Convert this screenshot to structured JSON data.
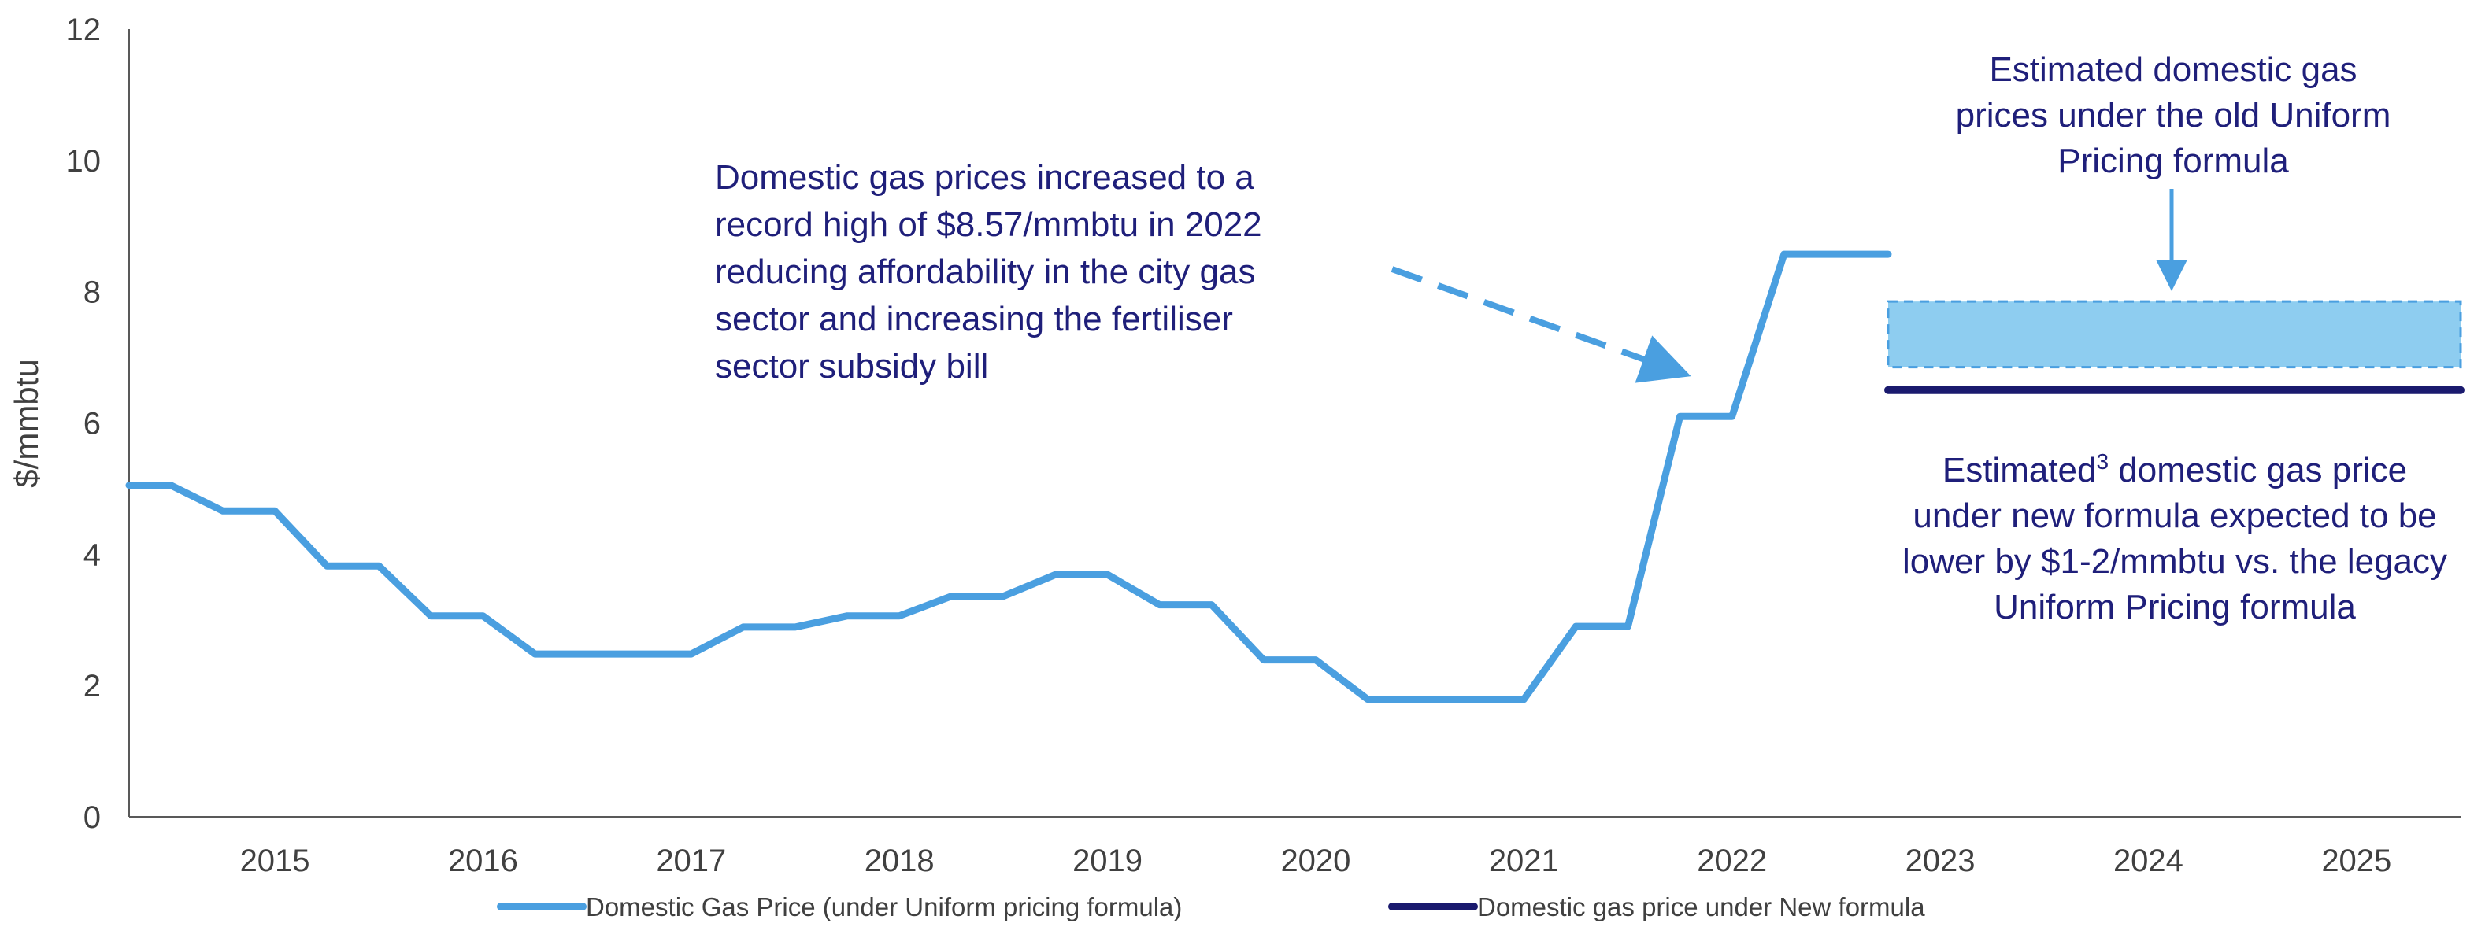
{
  "chart_data": {
    "type": "line",
    "ylabel": "$/mmbtu",
    "ylim": [
      0,
      12
    ],
    "yticks": [
      0,
      2,
      4,
      6,
      8,
      10,
      12
    ],
    "xlim": [
      2014.8,
      2026.0
    ],
    "xtick_labels": [
      "2015",
      "2016",
      "2017",
      "2018",
      "2019",
      "2020",
      "2021",
      "2022",
      "2023",
      "2024",
      "2025"
    ],
    "grid": false,
    "legend_position": "bottom",
    "series": [
      {
        "name": "Domestic Gas Price (under Uniform pricing formula)",
        "color": "#4a9fe0",
        "style": "step",
        "x": [
          2014.8,
          2015.0,
          2015.25,
          2015.5,
          2015.75,
          2016.0,
          2016.25,
          2016.5,
          2016.75,
          2017.0,
          2017.25,
          2017.5,
          2017.75,
          2018.0,
          2018.25,
          2018.5,
          2018.75,
          2019.0,
          2019.25,
          2019.5,
          2019.75,
          2020.0,
          2020.25,
          2020.5,
          2020.75,
          2021.0,
          2021.25,
          2021.5,
          2021.75,
          2022.0,
          2022.25,
          2022.5,
          2022.75,
          2023.0,
          2023.25
        ],
        "y": [
          5.05,
          5.05,
          4.66,
          4.66,
          3.82,
          3.82,
          3.06,
          3.06,
          2.48,
          2.48,
          2.48,
          2.48,
          2.89,
          2.89,
          3.06,
          3.06,
          3.36,
          3.36,
          3.69,
          3.69,
          3.23,
          3.23,
          2.39,
          2.39,
          1.79,
          1.79,
          1.79,
          1.79,
          2.9,
          2.9,
          6.1,
          6.1,
          8.57,
          8.57,
          8.57
        ]
      },
      {
        "name": "Domestic gas price under New formula",
        "color": "#1a1a6e",
        "x": [
          2023.25,
          2026.0
        ],
        "y": [
          6.5,
          6.5
        ]
      }
    ],
    "band": {
      "x": [
        2023.25,
        2026.0
      ],
      "y": [
        6.85,
        7.85
      ],
      "fill": "#8ecdf0",
      "stroke": "#4a9fe0"
    },
    "annotations": {
      "record_high": [
        "Domestic gas prices increased to a",
        "record high of $8.57/mmbtu in 2022",
        "reducing affordability in the city gas",
        "sector and increasing the fertiliser",
        "sector subsidy bill"
      ],
      "old_formula": [
        "Estimated domestic gas",
        "prices under the old Uniform",
        "Pricing formula"
      ],
      "new_formula_lines": [
        {
          "parts": [
            {
              "text": "Estimated"
            },
            {
              "text": "3",
              "sup": true
            },
            {
              "text": " domestic gas price"
            }
          ]
        },
        {
          "parts": [
            {
              "text": "under new formula expected to be"
            }
          ]
        },
        {
          "parts": [
            {
              "text": "lower by $1-2/mmbtu vs. the legacy"
            }
          ]
        },
        {
          "parts": [
            {
              "text": "Uniform Pricing formula"
            }
          ]
        }
      ]
    }
  },
  "colors": {
    "uniform": "#4a9fe0",
    "new_formula": "#1a1a6e",
    "band_fill": "#8ecdf0",
    "annotation_text": "#1f1f7a",
    "axis": "#595959"
  }
}
